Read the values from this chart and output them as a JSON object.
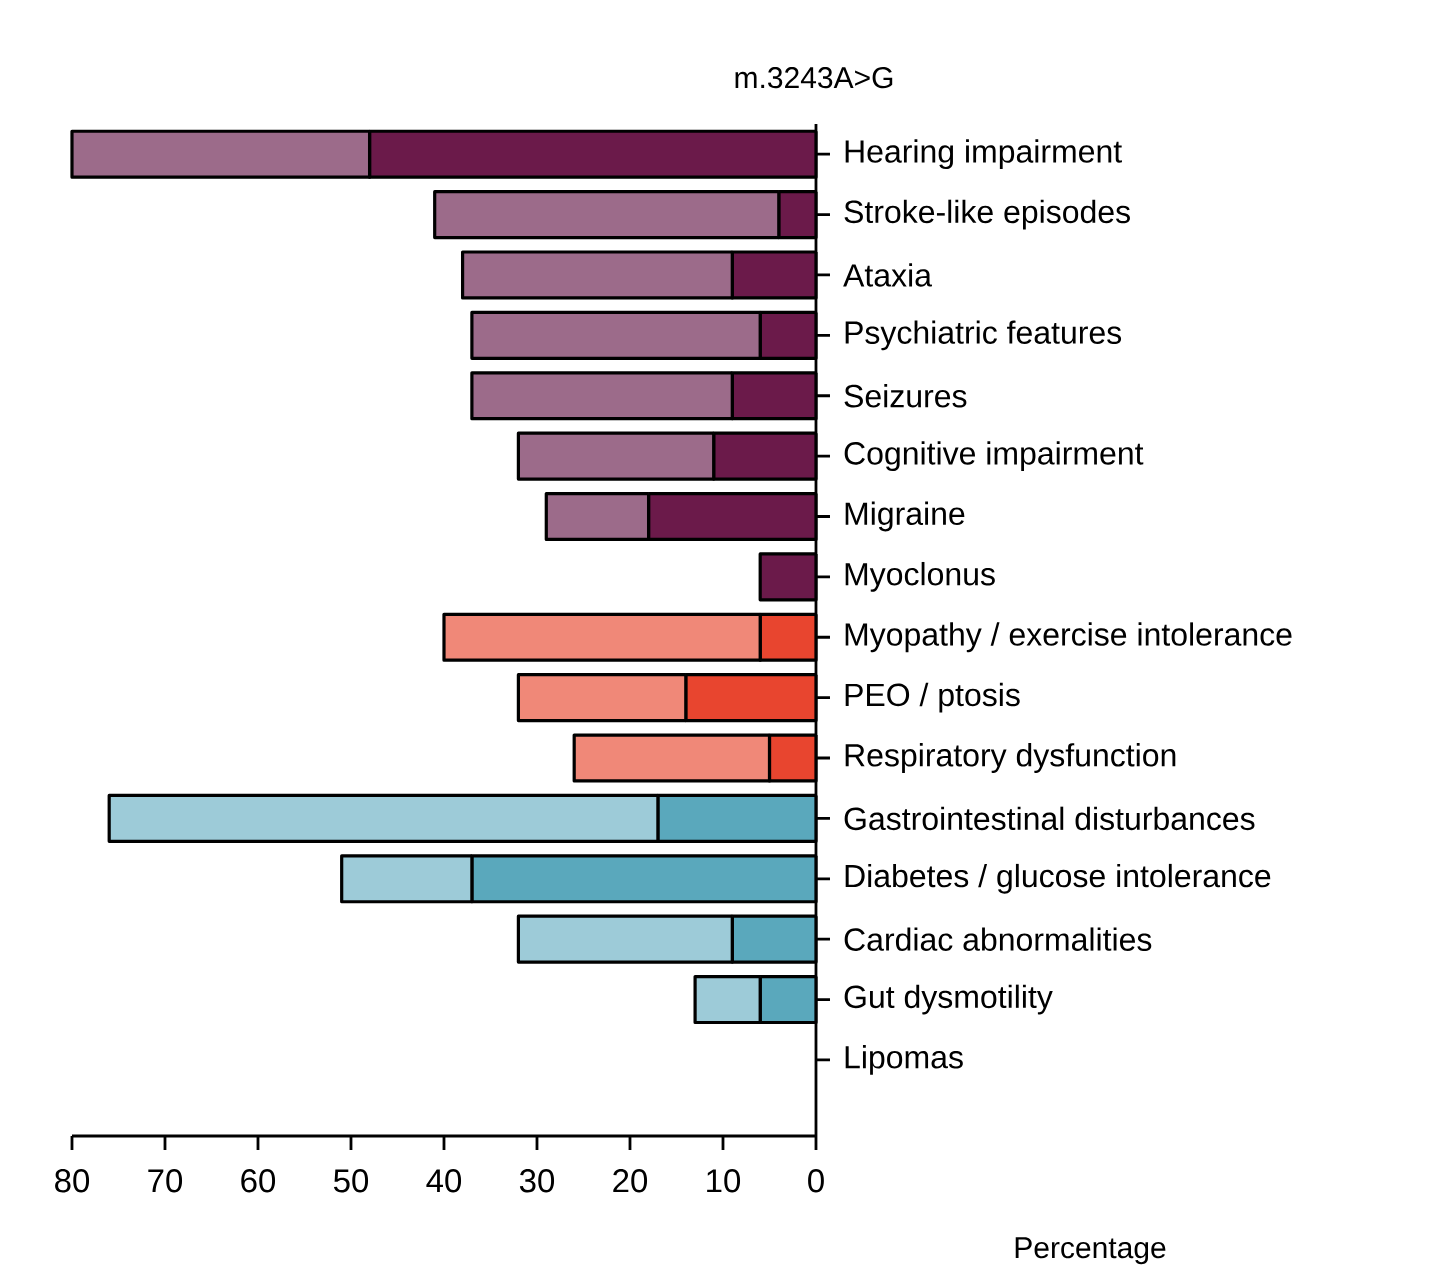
{
  "chart_data": {
    "type": "bar",
    "orientation": "horizontal",
    "stacked": true,
    "title": "m.3243A>G",
    "xlabel": "Percentage",
    "categories": [
      "Hearing impairment",
      "Stroke-like episodes",
      "Ataxia",
      "Psychiatric features",
      "Seizures",
      "Cognitive impairment",
      "Migraine",
      "Myoclonus",
      "Myopathy / exercise intolerance",
      "PEO / ptosis",
      "Respiratory dysfunction",
      "Gastrointestinal disturbances",
      "Diabetes / glucose intolerance",
      "Cardiac abnormalities",
      "Gut dysmotility",
      "Lipomas"
    ],
    "series": [
      {
        "values": [
          48,
          4,
          9,
          6,
          9,
          11,
          18,
          6,
          6,
          14,
          5,
          17,
          37,
          9,
          6,
          null
        ],
        "colors": [
          "#6b1a4a",
          "#6b1a4a",
          "#6b1a4a",
          "#6b1a4a",
          "#6b1a4a",
          "#6b1a4a",
          "#6b1a4a",
          "#6b1a4a",
          "#e8452f",
          "#e8452f",
          "#e8452f",
          "#5aa8bc",
          "#5aa8bc",
          "#5aa8bc",
          "#5aa8bc",
          "#5aa8bc"
        ]
      },
      {
        "values": [
          32,
          37,
          29,
          31,
          28,
          21,
          11,
          null,
          34,
          18,
          21,
          59,
          14,
          23,
          7,
          null
        ],
        "colors": [
          "#9c6b8a",
          "#9c6b8a",
          "#9c6b8a",
          "#9c6b8a",
          "#9c6b8a",
          "#9c6b8a",
          "#9c6b8a",
          "#9c6b8a",
          "#f08878",
          "#f08878",
          "#f08878",
          "#9dcbd8",
          "#9dcbd8",
          "#9dcbd8",
          "#9dcbd8",
          "#9dcbd8"
        ]
      }
    ],
    "xlim": [
      80,
      0
    ],
    "xticks": [
      80,
      70,
      60,
      50,
      40,
      30,
      20,
      10,
      0
    ],
    "grid": false
  }
}
